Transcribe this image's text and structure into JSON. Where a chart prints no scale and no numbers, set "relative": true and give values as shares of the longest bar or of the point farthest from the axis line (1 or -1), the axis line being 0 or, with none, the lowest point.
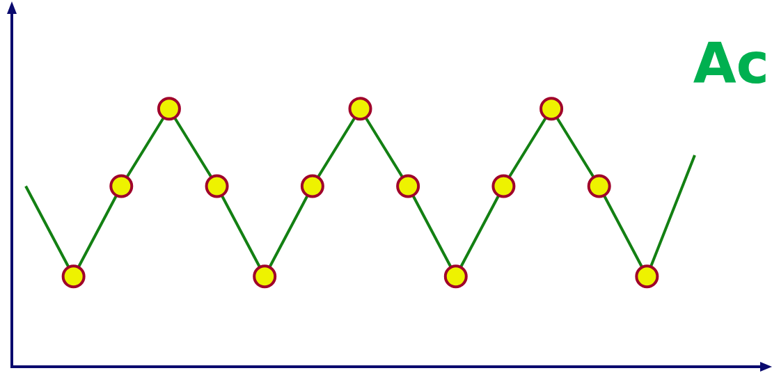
{
  "chart_data": {
    "type": "line",
    "relative": true,
    "annotations": [
      "Ac"
    ],
    "categories": [
      null,
      null,
      null,
      null,
      null,
      null,
      null,
      null,
      null,
      null,
      null,
      null,
      null,
      null,
      null
    ],
    "series": [
      {
        "type": "line",
        "color": "#138013",
        "marker": "circle",
        "values": [
          0.7,
          0.35,
          0.7,
          1,
          0.7,
          0.35,
          0.7,
          1,
          0.7,
          0.35,
          0.7,
          1,
          0.7,
          0.35,
          0.82
        ]
      }
    ]
  }
}
